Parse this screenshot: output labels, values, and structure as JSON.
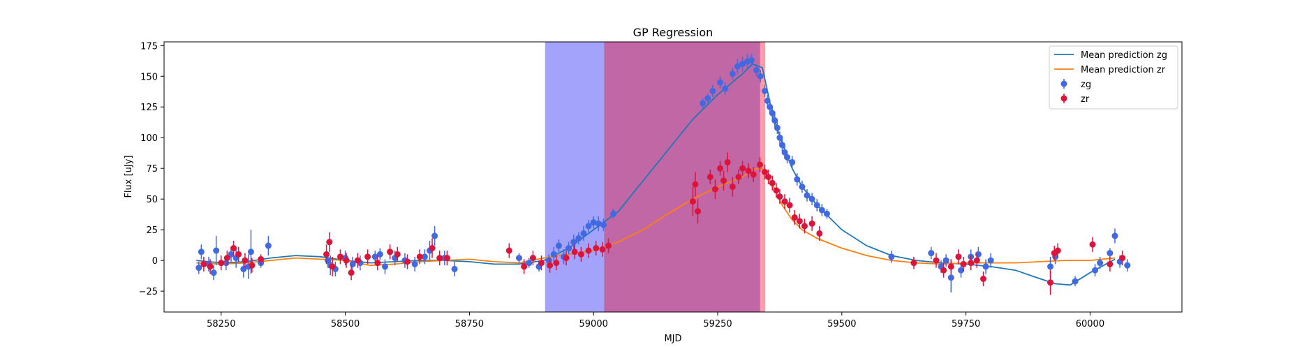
{
  "chart_data": {
    "type": "scatter",
    "title": "GP Regression",
    "xlabel": "MJD",
    "ylabel": "Flux [uJy]",
    "xlim": [
      58135,
      60185
    ],
    "ylim": [
      -42,
      178
    ],
    "xticks": [
      58250,
      58500,
      58750,
      59000,
      59250,
      59500,
      59750,
      60000
    ],
    "yticks": [
      -25,
      0,
      25,
      50,
      75,
      100,
      125,
      150,
      175
    ],
    "legend_position": "top-right",
    "colors": {
      "zg_line": "#1f77b4",
      "zr_line": "#ff7f0e",
      "zg_points": "#4169e1",
      "zr_points": "#dc143c",
      "band_blue": "#a3a3fc",
      "band_purple": "#c167a5",
      "band_red": "#ff9aa6"
    },
    "shaded_regions": [
      {
        "x0": 58903,
        "x1": 59022,
        "color": "band_blue"
      },
      {
        "x0": 59022,
        "x1": 59336,
        "color": "band_purple"
      },
      {
        "x0": 59336,
        "x1": 59345,
        "color": "band_red"
      }
    ],
    "series": [
      {
        "name": "Mean prediction zg",
        "kind": "line",
        "x": [
          58200,
          58250,
          58300,
          58350,
          58400,
          58450,
          58500,
          58550,
          58600,
          58650,
          58700,
          58750,
          58800,
          58850,
          58900,
          58950,
          59000,
          59050,
          59100,
          59150,
          59200,
          59250,
          59300,
          59320,
          59340,
          59360,
          59380,
          59400,
          59420,
          59450,
          59500,
          59550,
          59600,
          59650,
          59700,
          59750,
          59800,
          59850,
          59900,
          59930,
          59960,
          60000,
          60050
        ],
        "y": [
          0,
          -2,
          -1,
          2,
          4,
          3,
          0,
          -2,
          -1,
          0,
          0,
          -1,
          -3,
          -3,
          0,
          10,
          25,
          40,
          65,
          90,
          115,
          135,
          152,
          160,
          157,
          120,
          95,
          75,
          60,
          45,
          25,
          12,
          4,
          0,
          -2,
          -3,
          -5,
          -8,
          -15,
          -19,
          -20,
          -10,
          1
        ]
      },
      {
        "name": "Mean prediction zr",
        "kind": "line",
        "x": [
          58200,
          58250,
          58300,
          58350,
          58400,
          58450,
          58500,
          58550,
          58600,
          58650,
          58700,
          58750,
          58800,
          58850,
          58900,
          58950,
          59000,
          59050,
          59100,
          59150,
          59200,
          59250,
          59300,
          59320,
          59340,
          59360,
          59380,
          59400,
          59420,
          59450,
          59500,
          59550,
          59600,
          59650,
          59700,
          59750,
          59800,
          59850,
          59900,
          59950,
          60000,
          60050
        ],
        "y": [
          -2,
          -3,
          -2,
          0,
          2,
          1,
          0,
          -4,
          -3,
          -1,
          0,
          1,
          -1,
          -2,
          2,
          5,
          8,
          15,
          25,
          38,
          50,
          60,
          68,
          74,
          75,
          62,
          45,
          33,
          25,
          18,
          10,
          4,
          0,
          -2,
          -3,
          -2,
          -2,
          -2,
          -1,
          0,
          0,
          2
        ]
      },
      {
        "name": "zg",
        "kind": "errorbar",
        "points": [
          [
            58205,
            -6,
            5
          ],
          [
            58210,
            7,
            6
          ],
          [
            58225,
            -3,
            6
          ],
          [
            58235,
            -10,
            6
          ],
          [
            58240,
            8,
            12
          ],
          [
            58260,
            -2,
            6
          ],
          [
            58270,
            5,
            6
          ],
          [
            58280,
            2,
            8
          ],
          [
            58295,
            -7,
            7
          ],
          [
            58305,
            -5,
            10
          ],
          [
            58310,
            7,
            18
          ],
          [
            58330,
            -2,
            4
          ],
          [
            58345,
            12,
            8
          ],
          [
            58465,
            0,
            6
          ],
          [
            58470,
            -4,
            8
          ],
          [
            58480,
            -7,
            6
          ],
          [
            58500,
            2,
            6
          ],
          [
            58515,
            -3,
            6
          ],
          [
            58530,
            -2,
            6
          ],
          [
            58560,
            3,
            5
          ],
          [
            58570,
            5,
            5
          ],
          [
            58580,
            -5,
            6
          ],
          [
            58600,
            2,
            6
          ],
          [
            58620,
            0,
            6
          ],
          [
            58640,
            -3,
            6
          ],
          [
            58660,
            3,
            6
          ],
          [
            58670,
            8,
            8
          ],
          [
            58680,
            20,
            8
          ],
          [
            58700,
            2,
            6
          ],
          [
            58720,
            -7,
            6
          ],
          [
            58850,
            2,
            4
          ],
          [
            58870,
            -2,
            4
          ],
          [
            58890,
            -5,
            4
          ],
          [
            58910,
            0,
            5
          ],
          [
            58920,
            5,
            6
          ],
          [
            58930,
            12,
            5
          ],
          [
            58940,
            3,
            6
          ],
          [
            58950,
            10,
            5
          ],
          [
            58960,
            15,
            6
          ],
          [
            58970,
            18,
            5
          ],
          [
            58980,
            22,
            6
          ],
          [
            58990,
            28,
            5
          ],
          [
            59000,
            31,
            5
          ],
          [
            59010,
            30,
            6
          ],
          [
            59020,
            29,
            5
          ],
          [
            59040,
            38,
            4
          ],
          [
            59220,
            128,
            4
          ],
          [
            59230,
            132,
            4
          ],
          [
            59240,
            138,
            5
          ],
          [
            59255,
            145,
            5
          ],
          [
            59265,
            140,
            5
          ],
          [
            59280,
            152,
            5
          ],
          [
            59290,
            158,
            6
          ],
          [
            59300,
            160,
            6
          ],
          [
            59310,
            162,
            6
          ],
          [
            59318,
            163,
            5
          ],
          [
            59328,
            155,
            5
          ],
          [
            59336,
            150,
            5
          ],
          [
            59345,
            138,
            5
          ],
          [
            59350,
            130,
            5
          ],
          [
            59355,
            125,
            5
          ],
          [
            59360,
            120,
            5
          ],
          [
            59365,
            114,
            5
          ],
          [
            59370,
            108,
            5
          ],
          [
            59375,
            100,
            5
          ],
          [
            59380,
            94,
            5
          ],
          [
            59385,
            88,
            5
          ],
          [
            59390,
            84,
            5
          ],
          [
            59400,
            80,
            5
          ],
          [
            59410,
            66,
            5
          ],
          [
            59420,
            60,
            5
          ],
          [
            59430,
            53,
            5
          ],
          [
            59440,
            50,
            5
          ],
          [
            59450,
            45,
            5
          ],
          [
            59460,
            41,
            5
          ],
          [
            59470,
            38,
            4
          ],
          [
            59600,
            3,
            5
          ],
          [
            59680,
            6,
            5
          ],
          [
            59700,
            -5,
            5
          ],
          [
            59710,
            0,
            5
          ],
          [
            59720,
            -14,
            12
          ],
          [
            59740,
            -8,
            6
          ],
          [
            59760,
            3,
            6
          ],
          [
            59775,
            5,
            6
          ],
          [
            59790,
            -5,
            6
          ],
          [
            59800,
            0,
            6
          ],
          [
            59920,
            -5,
            8
          ],
          [
            59930,
            3,
            6
          ],
          [
            59970,
            -17,
            4
          ],
          [
            60010,
            -8,
            5
          ],
          [
            60020,
            -2,
            5
          ],
          [
            60040,
            6,
            4
          ],
          [
            60050,
            20,
            6
          ],
          [
            60060,
            -1,
            5
          ],
          [
            60075,
            -4,
            5
          ]
        ]
      },
      {
        "name": "zr",
        "kind": "errorbar",
        "points": [
          [
            58215,
            -3,
            6
          ],
          [
            58228,
            -5,
            6
          ],
          [
            58250,
            -2,
            6
          ],
          [
            58262,
            2,
            6
          ],
          [
            58275,
            10,
            6
          ],
          [
            58285,
            5,
            6
          ],
          [
            58298,
            0,
            6
          ],
          [
            58312,
            -4,
            6
          ],
          [
            58330,
            1,
            4
          ],
          [
            58462,
            5,
            8
          ],
          [
            58468,
            15,
            8
          ],
          [
            58474,
            -5,
            8
          ],
          [
            58490,
            3,
            6
          ],
          [
            58502,
            0,
            6
          ],
          [
            58512,
            -10,
            6
          ],
          [
            58525,
            0,
            6
          ],
          [
            58545,
            3,
            6
          ],
          [
            58565,
            -2,
            6
          ],
          [
            58590,
            7,
            6
          ],
          [
            58605,
            5,
            6
          ],
          [
            58625,
            -1,
            6
          ],
          [
            58650,
            3,
            6
          ],
          [
            58675,
            10,
            8
          ],
          [
            58690,
            2,
            6
          ],
          [
            58705,
            2,
            6
          ],
          [
            58830,
            8,
            6
          ],
          [
            58860,
            -5,
            6
          ],
          [
            58878,
            2,
            6
          ],
          [
            58895,
            -2,
            6
          ],
          [
            58912,
            -4,
            6
          ],
          [
            58925,
            -2,
            6
          ],
          [
            58945,
            2,
            6
          ],
          [
            58962,
            7,
            6
          ],
          [
            58975,
            5,
            6
          ],
          [
            58990,
            8,
            6
          ],
          [
            59005,
            10,
            6
          ],
          [
            59018,
            9,
            6
          ],
          [
            59030,
            12,
            6
          ],
          [
            59200,
            48,
            12
          ],
          [
            59205,
            62,
            10
          ],
          [
            59210,
            40,
            10
          ],
          [
            59235,
            68,
            6
          ],
          [
            59245,
            58,
            8
          ],
          [
            59255,
            75,
            6
          ],
          [
            59262,
            65,
            8
          ],
          [
            59270,
            80,
            8
          ],
          [
            59280,
            60,
            8
          ],
          [
            59292,
            68,
            6
          ],
          [
            59300,
            75,
            6
          ],
          [
            59312,
            73,
            6
          ],
          [
            59322,
            70,
            6
          ],
          [
            59335,
            78,
            6
          ],
          [
            59345,
            72,
            6
          ],
          [
            59352,
            68,
            6
          ],
          [
            59360,
            63,
            6
          ],
          [
            59368,
            57,
            6
          ],
          [
            59375,
            52,
            6
          ],
          [
            59385,
            48,
            6
          ],
          [
            59395,
            45,
            6
          ],
          [
            59405,
            35,
            6
          ],
          [
            59415,
            32,
            6
          ],
          [
            59425,
            28,
            6
          ],
          [
            59440,
            30,
            6
          ],
          [
            59455,
            22,
            6
          ],
          [
            59645,
            -2,
            5
          ],
          [
            59690,
            0,
            6
          ],
          [
            59705,
            -8,
            6
          ],
          [
            59720,
            -5,
            6
          ],
          [
            59735,
            3,
            6
          ],
          [
            59745,
            -3,
            6
          ],
          [
            59760,
            -2,
            6
          ],
          [
            59772,
            0,
            6
          ],
          [
            59785,
            -15,
            6
          ],
          [
            59920,
            -18,
            10
          ],
          [
            59928,
            6,
            6
          ],
          [
            59935,
            8,
            6
          ],
          [
            60005,
            13,
            6
          ],
          [
            60040,
            -3,
            6
          ],
          [
            60065,
            2,
            6
          ]
        ]
      }
    ]
  }
}
